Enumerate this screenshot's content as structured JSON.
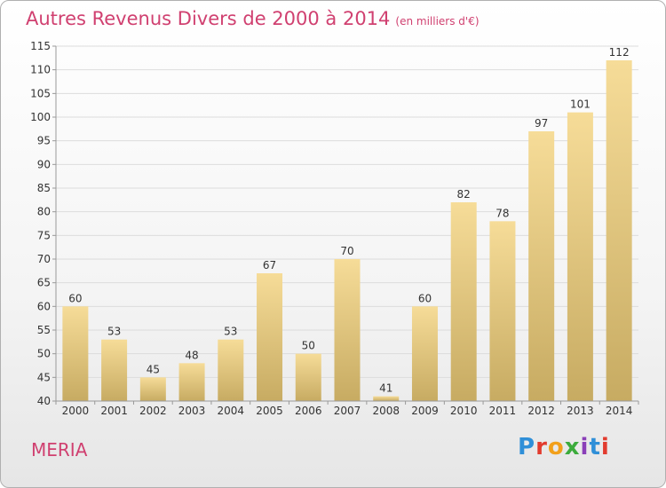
{
  "header": {
    "title": "Autres Revenus Divers de 2000 à 2014",
    "subtitle": "(en milliers d'€)"
  },
  "footer": {
    "location": "MERIA",
    "logo_text": "Proxiti",
    "logo_colors": [
      "#2f8fd8",
      "#e23b2e",
      "#f2a01b",
      "#3cab3c",
      "#8a3fb8",
      "#2f8fd8",
      "#e23b2e"
    ]
  },
  "colors": {
    "bar_top": "#f6dc98",
    "bar_bottom": "#c7ab62",
    "title": "#d04070",
    "grid": "#dcdcdc",
    "axis_text": "#333333"
  },
  "chart_data": {
    "type": "bar",
    "categories": [
      "2000",
      "2001",
      "2002",
      "2003",
      "2004",
      "2005",
      "2006",
      "2007",
      "2008",
      "2009",
      "2010",
      "2011",
      "2012",
      "2013",
      "2014"
    ],
    "values": [
      60,
      53,
      45,
      48,
      53,
      67,
      50,
      70,
      41,
      60,
      82,
      78,
      97,
      101,
      112
    ],
    "title": "Autres Revenus Divers de 2000 à 2014",
    "subtitle": "(en milliers d'€)",
    "ylim": [
      40,
      115
    ],
    "yticks": [
      40,
      45,
      50,
      55,
      60,
      65,
      70,
      75,
      80,
      85,
      90,
      95,
      100,
      105,
      110,
      115
    ],
    "grid": true
  }
}
